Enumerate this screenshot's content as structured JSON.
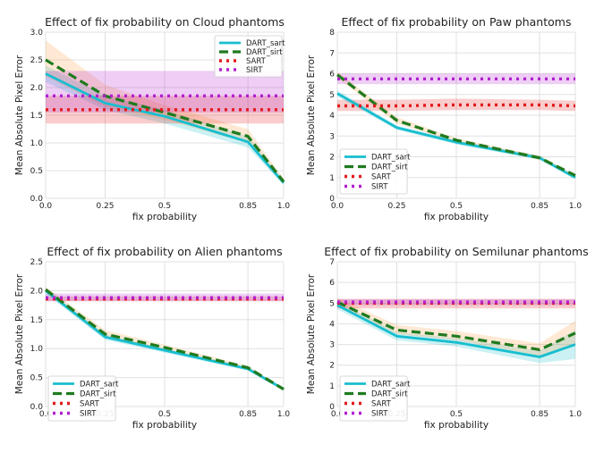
{
  "chart_data": [
    {
      "type": "line",
      "title": "Effect of fix probability on Cloud phantoms",
      "xlabel": "fix probability",
      "ylabel": "Mean Absolute Pixel Error",
      "x": [
        0.0,
        0.25,
        0.5,
        0.85,
        1.0
      ],
      "xticks": [
        "0.0",
        "0.25",
        "0.5",
        "0.85",
        "1.0"
      ],
      "ylim": [
        0,
        3
      ],
      "yticks": [
        "0.0",
        "0.5",
        "1.0",
        "1.5",
        "2.0",
        "2.5",
        "3.0"
      ],
      "legend_position": "top-right",
      "grid": true,
      "series": [
        {
          "name": "DART_sart",
          "style": "solid",
          "color": "#17becf",
          "values": [
            2.25,
            1.72,
            1.48,
            1.02,
            0.28
          ],
          "band_lo": [
            2.1,
            1.6,
            1.35,
            0.92,
            0.24
          ],
          "band_hi": [
            2.4,
            1.85,
            1.6,
            1.12,
            0.32
          ]
        },
        {
          "name": "DART_sirt",
          "style": "dashed",
          "color": "#1f7a1f",
          "values": [
            2.5,
            1.85,
            1.55,
            1.12,
            0.3
          ],
          "band_lo": [
            2.2,
            1.65,
            1.42,
            1.0,
            0.26
          ],
          "band_hi": [
            2.85,
            2.05,
            1.68,
            1.25,
            0.35
          ]
        },
        {
          "name": "SART",
          "style": "dotted",
          "color": "#e31a1c",
          "values": [
            1.6,
            1.6,
            1.6,
            1.6,
            1.6
          ],
          "band_lo": [
            1.35,
            1.35,
            1.35,
            1.35,
            1.35
          ],
          "band_hi": [
            1.85,
            1.85,
            1.85,
            1.85,
            1.85
          ]
        },
        {
          "name": "SIRT",
          "style": "dotted",
          "color": "#b21fcf",
          "values": [
            1.85,
            1.85,
            1.85,
            1.85,
            1.85
          ],
          "band_lo": [
            1.55,
            1.55,
            1.55,
            1.55,
            1.55
          ],
          "band_hi": [
            2.3,
            2.3,
            2.3,
            2.3,
            2.3
          ]
        }
      ]
    },
    {
      "type": "line",
      "title": "Effect of fix probability on Paw phantoms",
      "xlabel": "fix probability",
      "ylabel": "Mean Absolute Pixel Error",
      "x": [
        0.0,
        0.25,
        0.5,
        0.85,
        1.0
      ],
      "xticks": [
        "0.0",
        "0.25",
        "0.5",
        "0.85",
        "1.0"
      ],
      "ylim": [
        0,
        8
      ],
      "yticks": [
        "0",
        "1",
        "2",
        "3",
        "4",
        "5",
        "6",
        "7",
        "8"
      ],
      "legend_position": "bottom-left",
      "grid": true,
      "series": [
        {
          "name": "DART_sart",
          "style": "solid",
          "color": "#17becf",
          "values": [
            5.05,
            3.4,
            2.7,
            1.95,
            1.0
          ],
          "band_lo": [
            4.9,
            3.3,
            2.6,
            1.85,
            0.95
          ],
          "band_hi": [
            5.2,
            3.5,
            2.8,
            2.05,
            1.05
          ]
        },
        {
          "name": "DART_sirt",
          "style": "dashed",
          "color": "#1f7a1f",
          "values": [
            5.95,
            3.75,
            2.8,
            1.95,
            1.1
          ],
          "band_lo": [
            5.8,
            3.6,
            2.7,
            1.85,
            1.05
          ],
          "band_hi": [
            6.1,
            3.9,
            2.9,
            2.05,
            1.15
          ]
        },
        {
          "name": "SART",
          "style": "dotted",
          "color": "#e31a1c",
          "values": [
            4.45,
            4.45,
            4.5,
            4.5,
            4.45
          ],
          "band_lo": [
            4.2,
            4.2,
            4.25,
            4.25,
            4.2
          ],
          "band_hi": [
            4.75,
            4.75,
            4.8,
            4.75,
            4.7
          ]
        },
        {
          "name": "SIRT",
          "style": "dotted",
          "color": "#b21fcf",
          "values": [
            5.75,
            5.75,
            5.75,
            5.75,
            5.75
          ],
          "band_lo": [
            5.5,
            5.5,
            5.5,
            5.5,
            5.5
          ],
          "band_hi": [
            6.0,
            6.0,
            6.0,
            6.0,
            6.0
          ]
        }
      ]
    },
    {
      "type": "line",
      "title": "Effect of fix probability on Alien phantoms",
      "xlabel": "fix probability",
      "ylabel": "Mean Absolute Pixel Error",
      "x": [
        0.0,
        0.25,
        0.5,
        0.85,
        1.0
      ],
      "xticks": [
        "0.0",
        "0.25",
        "0.5",
        "0.85",
        "1.0"
      ],
      "ylim": [
        0,
        2.5
      ],
      "yticks": [
        "0.0",
        "0.5",
        "1.0",
        "1.5",
        "2.0",
        "2.5"
      ],
      "legend_position": "bottom-left",
      "grid": true,
      "series": [
        {
          "name": "DART_sart",
          "style": "solid",
          "color": "#17becf",
          "values": [
            2.0,
            1.2,
            0.97,
            0.65,
            0.3
          ],
          "band_lo": [
            1.95,
            1.15,
            0.93,
            0.62,
            0.28
          ],
          "band_hi": [
            2.05,
            1.25,
            1.0,
            0.68,
            0.32
          ]
        },
        {
          "name": "DART_sirt",
          "style": "dashed",
          "color": "#1f7a1f",
          "values": [
            2.02,
            1.25,
            1.02,
            0.67,
            0.3
          ],
          "band_lo": [
            1.97,
            1.18,
            0.97,
            0.63,
            0.28
          ],
          "band_hi": [
            2.07,
            1.32,
            1.07,
            0.7,
            0.32
          ]
        },
        {
          "name": "SART",
          "style": "dotted",
          "color": "#e31a1c",
          "values": [
            1.86,
            1.86,
            1.86,
            1.86,
            1.86
          ],
          "band_lo": [
            1.82,
            1.82,
            1.82,
            1.82,
            1.82
          ],
          "band_hi": [
            1.9,
            1.9,
            1.9,
            1.9,
            1.9
          ]
        },
        {
          "name": "SIRT",
          "style": "dotted",
          "color": "#b21fcf",
          "values": [
            1.88,
            1.88,
            1.88,
            1.88,
            1.88
          ],
          "band_lo": [
            1.82,
            1.82,
            1.82,
            1.82,
            1.82
          ],
          "band_hi": [
            1.95,
            1.95,
            1.95,
            1.95,
            1.95
          ]
        }
      ]
    },
    {
      "type": "line",
      "title": "Effect of fix probability on Semilunar phantoms",
      "xlabel": "fix probability",
      "ylabel": "Mean Absolute Pixel Error",
      "x": [
        0.0,
        0.25,
        0.5,
        0.85,
        1.0
      ],
      "xticks": [
        "0.0",
        "0.25",
        "0.5",
        "0.85",
        "1.0"
      ],
      "ylim": [
        0,
        7
      ],
      "yticks": [
        "0",
        "1",
        "2",
        "3",
        "4",
        "5",
        "6",
        "7"
      ],
      "legend_position": "bottom-left",
      "grid": true,
      "series": [
        {
          "name": "DART_sart",
          "style": "solid",
          "color": "#17becf",
          "values": [
            4.9,
            3.4,
            3.1,
            2.4,
            3.0
          ],
          "band_lo": [
            4.7,
            3.2,
            2.9,
            2.1,
            2.3
          ],
          "band_hi": [
            5.1,
            3.6,
            3.3,
            2.7,
            3.7
          ]
        },
        {
          "name": "DART_sirt",
          "style": "dashed",
          "color": "#1f7a1f",
          "values": [
            5.05,
            3.7,
            3.4,
            2.75,
            3.55
          ],
          "band_lo": [
            4.85,
            3.5,
            3.2,
            2.45,
            3.0
          ],
          "band_hi": [
            5.25,
            3.95,
            3.65,
            3.05,
            4.15
          ]
        },
        {
          "name": "SART",
          "style": "dotted",
          "color": "#e31a1c",
          "values": [
            5.0,
            5.0,
            5.0,
            5.0,
            5.0
          ],
          "band_lo": [
            4.75,
            4.75,
            4.75,
            4.75,
            4.75
          ],
          "band_hi": [
            5.2,
            5.2,
            5.2,
            5.2,
            5.2
          ]
        },
        {
          "name": "SIRT",
          "style": "dotted",
          "color": "#b21fcf",
          "values": [
            5.05,
            5.05,
            5.05,
            5.05,
            5.05
          ],
          "band_lo": [
            4.9,
            4.9,
            4.9,
            4.9,
            4.9
          ],
          "band_hi": [
            5.2,
            5.2,
            5.2,
            5.2,
            5.2
          ]
        }
      ]
    }
  ]
}
